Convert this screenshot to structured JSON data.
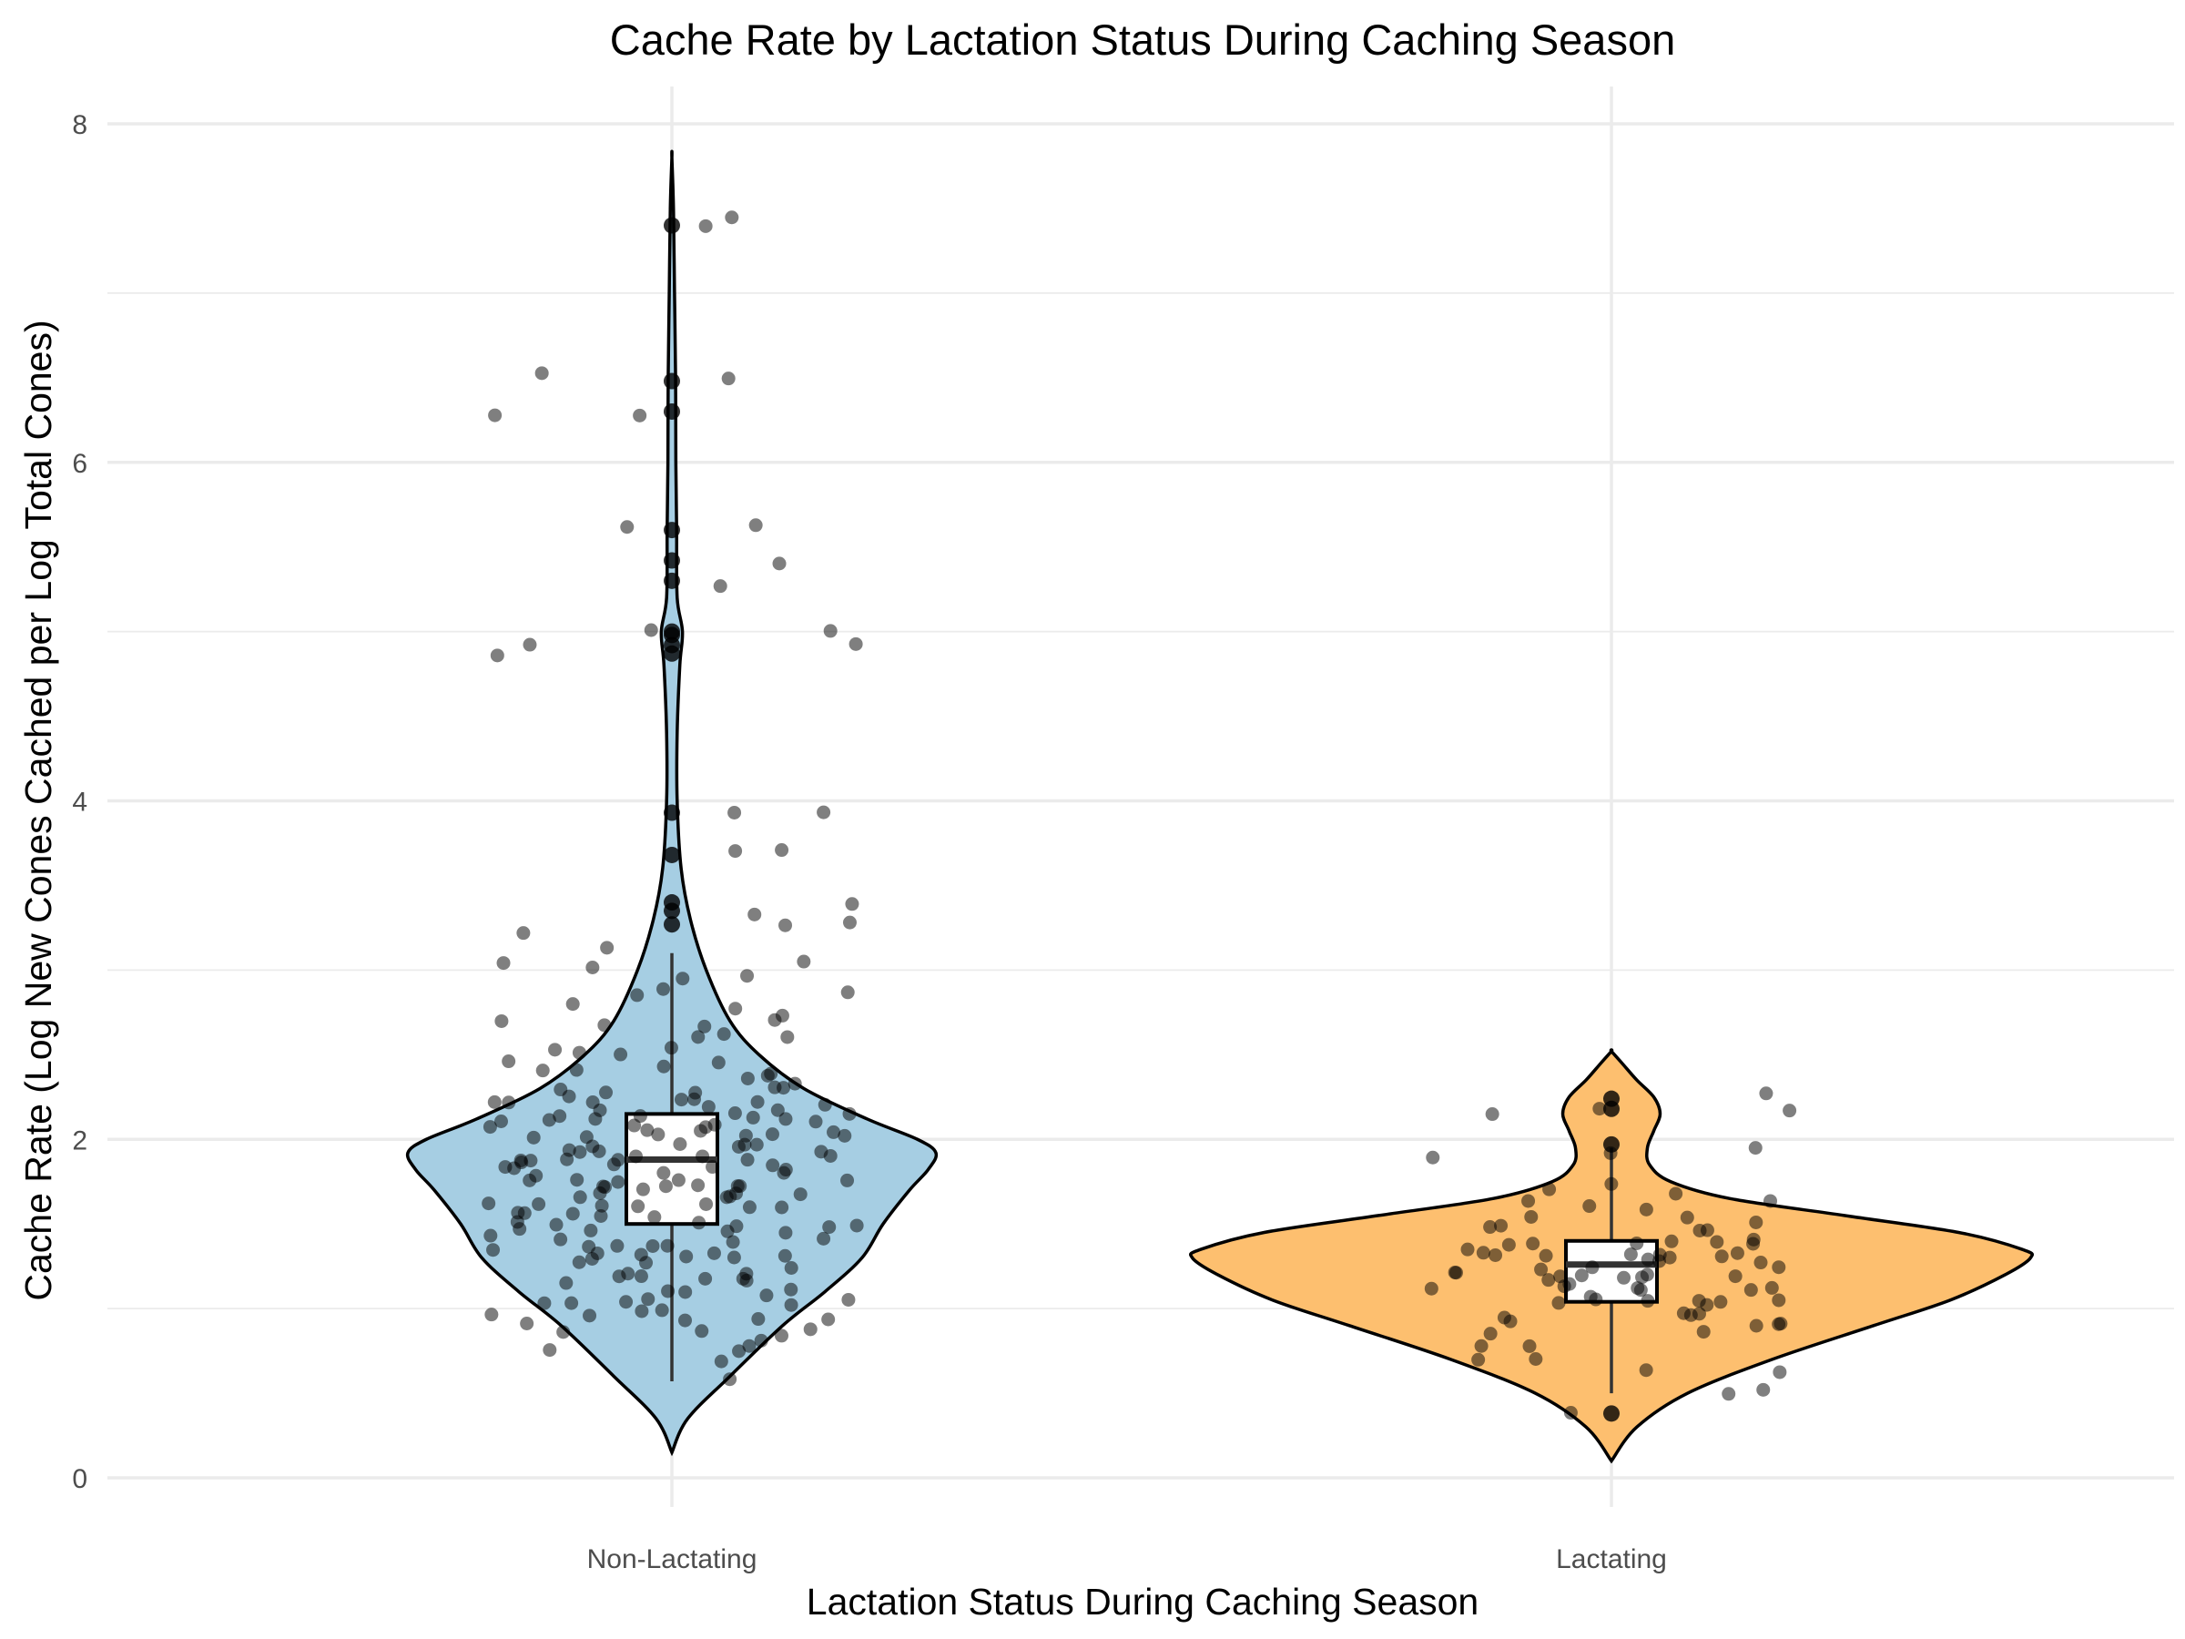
{
  "chart_data": {
    "type": "violin",
    "title": "Cache Rate by Lactation Status During Caching Season",
    "xlabel": "Lactation Status During Caching Season",
    "ylabel": "Cache Rate (Log New Cones Cached per Log Total Cones)",
    "ylim": [
      0,
      8
    ],
    "yticks": [
      0,
      2,
      4,
      6,
      8
    ],
    "grid": true,
    "categories": [
      "Non-Lactating",
      "Lactating"
    ],
    "series": [
      {
        "name": "Non-Lactating",
        "color": "#a6cee3",
        "min": 0.15,
        "max": 7.8,
        "box": {
          "whisker_low": 0.57,
          "q1": 1.5,
          "median": 1.88,
          "q3": 2.15,
          "whisker_high": 3.1
        },
        "density": [
          [
            0.15,
            0.0
          ],
          [
            0.35,
            0.06
          ],
          [
            0.6,
            0.22
          ],
          [
            0.9,
            0.42
          ],
          [
            1.1,
            0.58
          ],
          [
            1.3,
            0.72
          ],
          [
            1.5,
            0.8
          ],
          [
            1.7,
            0.9
          ],
          [
            1.82,
            0.97
          ],
          [
            1.92,
            1.0
          ],
          [
            2.0,
            0.93
          ],
          [
            2.12,
            0.74
          ],
          [
            2.3,
            0.5
          ],
          [
            2.5,
            0.33
          ],
          [
            2.7,
            0.22
          ],
          [
            3.0,
            0.13
          ],
          [
            3.3,
            0.07
          ],
          [
            3.6,
            0.035
          ],
          [
            4.0,
            0.02
          ],
          [
            4.4,
            0.02
          ],
          [
            4.8,
            0.03
          ],
          [
            5.0,
            0.04
          ],
          [
            5.2,
            0.02
          ],
          [
            5.6,
            0.018
          ],
          [
            6.0,
            0.015
          ],
          [
            6.5,
            0.014
          ],
          [
            7.0,
            0.01
          ],
          [
            7.5,
            0.006
          ],
          [
            7.8,
            0.0
          ]
        ],
        "points": [
          0.57,
          0.72,
          0.76,
          0.78,
          0.8,
          0.8,
          0.82,
          0.85,
          0.88,
          0.9,
          0.91,
          0.93,
          0.95,
          0.96,
          0.98,
          1.0,
          1.02,
          1.04,
          1.05,
          1.06,
          1.08,
          1.1,
          1.12,
          1.14,
          1.15,
          1.17,
          1.19,
          1.2,
          1.22,
          1.24,
          1.25,
          1.27,
          1.28,
          1.3,
          1.31,
          1.33,
          1.34,
          1.35,
          1.37,
          1.38,
          1.4,
          1.41,
          1.42,
          1.44,
          1.45,
          1.46,
          1.48,
          1.49,
          1.5,
          1.51,
          1.52,
          1.54,
          1.55,
          1.56,
          1.57,
          1.58,
          1.6,
          1.61,
          1.62,
          1.63,
          1.64,
          1.65,
          1.66,
          1.67,
          1.68,
          1.69,
          1.7,
          1.71,
          1.72,
          1.73,
          1.74,
          1.75,
          1.76,
          1.77,
          1.78,
          1.79,
          1.8,
          1.81,
          1.82,
          1.83,
          1.84,
          1.85,
          1.86,
          1.87,
          1.88,
          1.89,
          1.9,
          1.91,
          1.92,
          1.93,
          1.94,
          1.95,
          1.96,
          1.97,
          1.98,
          1.99,
          2.0,
          2.01,
          2.02,
          2.03,
          2.04,
          2.05,
          2.06,
          2.07,
          2.08,
          2.09,
          2.1,
          2.11,
          2.12,
          2.13,
          2.14,
          2.15,
          2.16,
          2.17,
          2.18,
          2.19,
          2.2,
          2.21,
          2.22,
          2.23,
          2.24,
          2.25,
          2.26,
          2.27,
          2.28,
          2.29,
          2.3,
          2.32,
          2.34,
          2.35,
          2.37,
          2.38,
          2.4,
          2.43,
          2.45,
          2.48,
          2.5,
          2.53,
          2.55,
          2.58,
          2.6,
          2.63,
          2.65,
          2.67,
          2.7,
          2.73,
          2.75,
          2.78,
          2.8,
          2.85,
          2.88,
          2.9,
          2.95,
          2.98,
          3.0,
          3.02,
          3.05,
          3.1,
          3.25,
          3.27,
          3.3,
          3.35,
          3.4,
          3.68,
          3.7,
          3.93,
          3.93,
          4.87,
          4.9,
          4.92,
          4.98,
          5.0,
          5.3,
          5.42,
          5.6,
          5.6,
          6.3,
          6.3,
          6.48,
          6.5,
          7.4,
          7.42,
          1.35,
          1.45,
          1.55,
          1.65,
          1.75,
          1.85,
          1.95,
          2.05,
          2.15,
          1.25,
          1.15,
          1.05,
          0.95,
          1.6,
          1.7,
          1.8,
          1.9,
          2.0,
          2.1,
          2.2,
          1.5,
          1.4,
          1.3,
          1.2,
          1.1,
          1.0,
          0.9,
          2.3,
          2.4,
          2.5,
          1.62,
          1.72,
          1.82,
          1.92,
          2.02
        ],
        "outliers": [
          3.27,
          3.35,
          3.4,
          3.68,
          3.93,
          4.87,
          4.92,
          4.98,
          5.0,
          5.3,
          5.42,
          5.6,
          6.3,
          6.48,
          7.4
        ]
      },
      {
        "name": "Lactating",
        "color": "#fdbf6f",
        "min": 0.1,
        "max": 2.52,
        "box": {
          "whisker_low": 0.5,
          "q1": 1.04,
          "median": 1.26,
          "q3": 1.4,
          "whisker_high": 1.95
        },
        "density": [
          [
            0.1,
            0.0
          ],
          [
            0.3,
            0.06
          ],
          [
            0.5,
            0.18
          ],
          [
            0.7,
            0.38
          ],
          [
            0.9,
            0.62
          ],
          [
            1.05,
            0.8
          ],
          [
            1.2,
            0.93
          ],
          [
            1.3,
            0.99
          ],
          [
            1.35,
            0.97
          ],
          [
            1.45,
            0.82
          ],
          [
            1.55,
            0.55
          ],
          [
            1.65,
            0.28
          ],
          [
            1.75,
            0.14
          ],
          [
            1.85,
            0.09
          ],
          [
            1.95,
            0.085
          ],
          [
            2.05,
            0.1
          ],
          [
            2.15,
            0.115
          ],
          [
            2.25,
            0.1
          ],
          [
            2.35,
            0.06
          ],
          [
            2.45,
            0.025
          ],
          [
            2.52,
            0.0
          ]
        ],
        "points": [
          0.38,
          0.5,
          0.55,
          0.6,
          0.65,
          0.7,
          0.72,
          0.75,
          0.8,
          0.82,
          0.85,
          0.88,
          0.9,
          0.92,
          0.94,
          0.96,
          0.98,
          1.0,
          1.01,
          1.02,
          1.03,
          1.04,
          1.05,
          1.06,
          1.07,
          1.08,
          1.1,
          1.11,
          1.12,
          1.13,
          1.14,
          1.15,
          1.16,
          1.17,
          1.18,
          1.19,
          1.2,
          1.21,
          1.22,
          1.23,
          1.24,
          1.25,
          1.26,
          1.27,
          1.28,
          1.29,
          1.3,
          1.31,
          1.32,
          1.33,
          1.34,
          1.35,
          1.36,
          1.37,
          1.38,
          1.39,
          1.4,
          1.41,
          1.42,
          1.43,
          1.44,
          1.45,
          1.46,
          1.48,
          1.5,
          1.52,
          1.55,
          1.58,
          1.6,
          1.62,
          1.65,
          1.68,
          1.7,
          1.75,
          1.88,
          1.95,
          1.97,
          2.16,
          2.18,
          2.2,
          2.24,
          1.22,
          1.32,
          1.12,
          1.02,
          0.92
        ],
        "outliers": [
          0.38,
          1.97,
          2.18,
          2.24
        ]
      }
    ]
  }
}
